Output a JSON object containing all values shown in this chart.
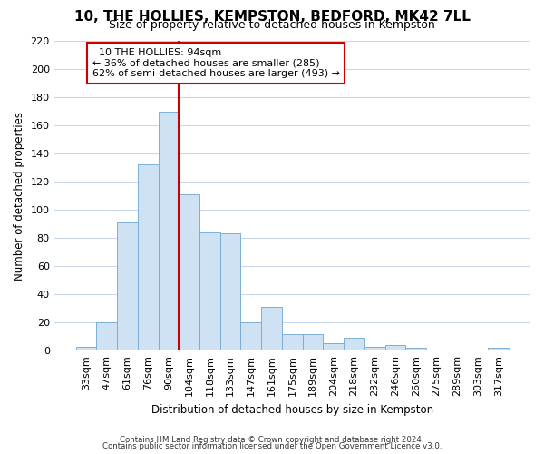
{
  "title": "10, THE HOLLIES, KEMPSTON, BEDFORD, MK42 7LL",
  "subtitle": "Size of property relative to detached houses in Kempston",
  "xlabel": "Distribution of detached houses by size in Kempston",
  "ylabel": "Number of detached properties",
  "bar_labels": [
    "33sqm",
    "47sqm",
    "61sqm",
    "76sqm",
    "90sqm",
    "104sqm",
    "118sqm",
    "133sqm",
    "147sqm",
    "161sqm",
    "175sqm",
    "189sqm",
    "204sqm",
    "218sqm",
    "232sqm",
    "246sqm",
    "260sqm",
    "275sqm",
    "289sqm",
    "303sqm",
    "317sqm"
  ],
  "bar_values": [
    3,
    20,
    91,
    132,
    170,
    111,
    84,
    83,
    20,
    31,
    12,
    12,
    5,
    9,
    3,
    4,
    2,
    1,
    1,
    1,
    2
  ],
  "bar_color": "#cfe2f3",
  "bar_edge_color": "#7bafd4",
  "vline_position": 4.5,
  "vline_color": "#cc0000",
  "ylim": [
    0,
    220
  ],
  "yticks": [
    0,
    20,
    40,
    60,
    80,
    100,
    120,
    140,
    160,
    180,
    200,
    220
  ],
  "annotation_title": "10 THE HOLLIES: 94sqm",
  "annotation_line1": "← 36% of detached houses are smaller (285)",
  "annotation_line2": "62% of semi-detached houses are larger (493) →",
  "annotation_box_color": "#ffffff",
  "annotation_box_edge": "#cc0000",
  "footer_line1": "Contains HM Land Registry data © Crown copyright and database right 2024.",
  "footer_line2": "Contains public sector information licensed under the Open Government Licence v3.0.",
  "background_color": "#ffffff",
  "grid_color": "#c8d8ea",
  "title_fontsize": 11,
  "subtitle_fontsize": 9
}
